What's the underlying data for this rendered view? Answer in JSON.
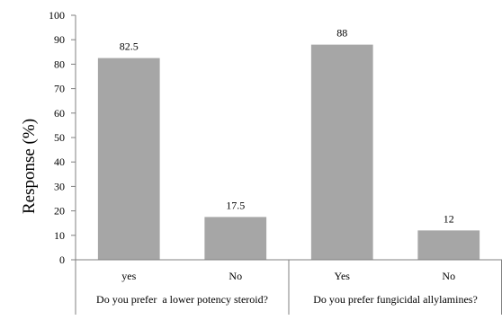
{
  "chart_data": {
    "type": "bar",
    "title": "",
    "ylabel": "Response (%)",
    "xlabel": "",
    "ylim": [
      0,
      100
    ],
    "yticks": [
      0,
      10,
      20,
      30,
      40,
      50,
      60,
      70,
      80,
      90,
      100
    ],
    "grid": false,
    "legend": "none",
    "bar_color": "#a6a6a6",
    "groups": [
      {
        "label": "Do you prefer  a lower potency steroid?",
        "categories": [
          "yes",
          "No"
        ],
        "values": [
          82.5,
          17.5
        ],
        "value_labels": [
          "82.5",
          "17.5"
        ]
      },
      {
        "label": "Do you prefer fungicidal allylamines?",
        "categories": [
          "Yes",
          "No"
        ],
        "values": [
          88,
          12
        ],
        "value_labels": [
          "88",
          "12"
        ]
      }
    ]
  }
}
